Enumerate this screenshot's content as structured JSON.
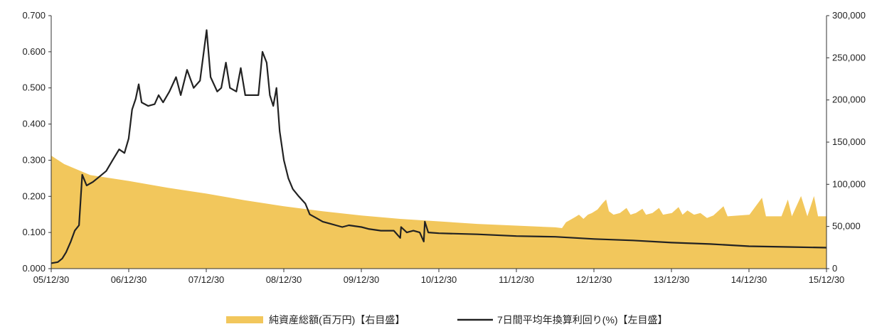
{
  "chart_data": {
    "type": "area+line",
    "x_ticks": [
      "05/12/30",
      "06/12/30",
      "07/12/30",
      "08/12/30",
      "09/12/30",
      "10/12/30",
      "11/12/30",
      "12/12/30",
      "13/12/30",
      "14/12/30",
      "15/12/30"
    ],
    "x_range": [
      "2005-12-30",
      "2015-12-30"
    ],
    "y_left": {
      "ticks": [
        "0.000",
        "0.100",
        "0.200",
        "0.300",
        "0.400",
        "0.500",
        "0.600",
        "0.700"
      ],
      "min": 0,
      "max": 0.7
    },
    "y_right": {
      "ticks": [
        "0",
        "50,000",
        "100,000",
        "150,000",
        "200,000",
        "250,000",
        "300,000"
      ],
      "min": 0,
      "max": 300000
    },
    "grid": false,
    "legend_position": "bottom",
    "series": [
      {
        "name": "純資産総額(百万円)【右目盛】",
        "axis": "right",
        "style": "area",
        "color": "#F2C75C",
        "points": [
          [
            "2005-12-30",
            134000
          ],
          [
            "2006-03-01",
            124000
          ],
          [
            "2006-07-01",
            111000
          ],
          [
            "2006-12-30",
            104000
          ],
          [
            "2007-06-30",
            96000
          ],
          [
            "2007-12-30",
            89000
          ],
          [
            "2008-06-30",
            81000
          ],
          [
            "2008-12-30",
            74000
          ],
          [
            "2009-06-30",
            68000
          ],
          [
            "2009-12-30",
            63000
          ],
          [
            "2010-06-30",
            59000
          ],
          [
            "2010-12-30",
            56000
          ],
          [
            "2011-06-30",
            53000
          ],
          [
            "2011-12-30",
            51000
          ],
          [
            "2012-06-30",
            49000
          ],
          [
            "2012-08-01",
            48000
          ],
          [
            "2012-08-20",
            55000
          ],
          [
            "2012-09-10",
            58000
          ],
          [
            "2012-10-01",
            61000
          ],
          [
            "2012-10-20",
            64000
          ],
          [
            "2012-11-10",
            59000
          ],
          [
            "2012-12-01",
            64000
          ],
          [
            "2012-12-20",
            66000
          ],
          [
            "2013-01-15",
            70000
          ],
          [
            "2013-02-10",
            78000
          ],
          [
            "2013-02-25",
            82000
          ],
          [
            "2013-03-10",
            68000
          ],
          [
            "2013-04-01",
            64000
          ],
          [
            "2013-05-01",
            66000
          ],
          [
            "2013-06-01",
            72000
          ],
          [
            "2013-06-20",
            64000
          ],
          [
            "2013-07-15",
            66000
          ],
          [
            "2013-08-15",
            71000
          ],
          [
            "2013-09-01",
            64000
          ],
          [
            "2013-10-01",
            66000
          ],
          [
            "2013-11-01",
            72000
          ],
          [
            "2013-11-20",
            64000
          ],
          [
            "2014-01-01",
            66000
          ],
          [
            "2014-02-01",
            73000
          ],
          [
            "2014-02-20",
            64000
          ],
          [
            "2014-03-15",
            69000
          ],
          [
            "2014-04-15",
            64000
          ],
          [
            "2014-05-15",
            66000
          ],
          [
            "2014-06-15",
            60000
          ],
          [
            "2014-07-15",
            63000
          ],
          [
            "2014-09-01",
            74000
          ],
          [
            "2014-09-20",
            62000
          ],
          [
            "2015-01-01",
            64000
          ],
          [
            "2015-03-01",
            84000
          ],
          [
            "2015-03-20",
            62000
          ],
          [
            "2015-06-01",
            62000
          ],
          [
            "2015-07-01",
            82000
          ],
          [
            "2015-07-20",
            62000
          ],
          [
            "2015-09-01",
            86000
          ],
          [
            "2015-10-01",
            62000
          ],
          [
            "2015-11-01",
            86000
          ],
          [
            "2015-11-20",
            62000
          ],
          [
            "2015-12-30",
            62000
          ]
        ]
      },
      {
        "name": "7日間平均年換算利回り(%)【左目盛】",
        "axis": "left",
        "style": "line",
        "color": "#222222",
        "points": [
          [
            "2005-12-30",
            0.015
          ],
          [
            "2006-01-30",
            0.018
          ],
          [
            "2006-02-20",
            0.028
          ],
          [
            "2006-03-10",
            0.045
          ],
          [
            "2006-04-01",
            0.075
          ],
          [
            "2006-04-20",
            0.105
          ],
          [
            "2006-05-10",
            0.12
          ],
          [
            "2006-05-25",
            0.26
          ],
          [
            "2006-06-15",
            0.23
          ],
          [
            "2006-07-15",
            0.24
          ],
          [
            "2006-08-15",
            0.255
          ],
          [
            "2006-09-15",
            0.27
          ],
          [
            "2006-10-15",
            0.3
          ],
          [
            "2006-11-15",
            0.33
          ],
          [
            "2006-12-10",
            0.32
          ],
          [
            "2006-12-30",
            0.36
          ],
          [
            "2007-01-15",
            0.44
          ],
          [
            "2007-02-01",
            0.47
          ],
          [
            "2007-02-15",
            0.51
          ],
          [
            "2007-03-01",
            0.46
          ],
          [
            "2007-04-01",
            0.45
          ],
          [
            "2007-05-01",
            0.455
          ],
          [
            "2007-05-20",
            0.48
          ],
          [
            "2007-06-10",
            0.46
          ],
          [
            "2007-07-10",
            0.49
          ],
          [
            "2007-08-10",
            0.53
          ],
          [
            "2007-09-01",
            0.48
          ],
          [
            "2007-10-01",
            0.55
          ],
          [
            "2007-11-01",
            0.5
          ],
          [
            "2007-12-01",
            0.52
          ],
          [
            "2008-01-01",
            0.66
          ],
          [
            "2008-01-20",
            0.53
          ],
          [
            "2008-02-20",
            0.49
          ],
          [
            "2008-03-10",
            0.5
          ],
          [
            "2008-04-01",
            0.57
          ],
          [
            "2008-04-20",
            0.5
          ],
          [
            "2008-05-20",
            0.49
          ],
          [
            "2008-06-10",
            0.555
          ],
          [
            "2008-07-01",
            0.48
          ],
          [
            "2008-08-01",
            0.48
          ],
          [
            "2008-09-01",
            0.48
          ],
          [
            "2008-09-20",
            0.6
          ],
          [
            "2008-10-10",
            0.57
          ],
          [
            "2008-10-25",
            0.48
          ],
          [
            "2008-11-10",
            0.45
          ],
          [
            "2008-11-25",
            0.5
          ],
          [
            "2008-12-10",
            0.38
          ],
          [
            "2008-12-30",
            0.3
          ],
          [
            "2009-01-20",
            0.25
          ],
          [
            "2009-02-10",
            0.22
          ],
          [
            "2009-03-10",
            0.2
          ],
          [
            "2009-04-10",
            0.18
          ],
          [
            "2009-05-01",
            0.15
          ],
          [
            "2009-06-01",
            0.14
          ],
          [
            "2009-07-01",
            0.13
          ],
          [
            "2009-08-01",
            0.125
          ],
          [
            "2009-09-01",
            0.12
          ],
          [
            "2009-10-01",
            0.115
          ],
          [
            "2009-11-01",
            0.12
          ],
          [
            "2009-12-30",
            0.115
          ],
          [
            "2010-02-01",
            0.11
          ],
          [
            "2010-04-01",
            0.105
          ],
          [
            "2010-06-01",
            0.105
          ],
          [
            "2010-07-01",
            0.085
          ],
          [
            "2010-07-05",
            0.115
          ],
          [
            "2010-08-01",
            0.1
          ],
          [
            "2010-09-01",
            0.105
          ],
          [
            "2010-10-01",
            0.1
          ],
          [
            "2010-10-20",
            0.075
          ],
          [
            "2010-10-25",
            0.13
          ],
          [
            "2010-11-10",
            0.1
          ],
          [
            "2010-12-30",
            0.098
          ],
          [
            "2011-06-30",
            0.095
          ],
          [
            "2011-12-30",
            0.09
          ],
          [
            "2012-06-30",
            0.088
          ],
          [
            "2012-12-30",
            0.082
          ],
          [
            "2013-06-30",
            0.078
          ],
          [
            "2013-12-30",
            0.072
          ],
          [
            "2014-06-30",
            0.068
          ],
          [
            "2014-12-30",
            0.062
          ],
          [
            "2015-06-30",
            0.06
          ],
          [
            "2015-12-30",
            0.058
          ]
        ]
      }
    ]
  }
}
